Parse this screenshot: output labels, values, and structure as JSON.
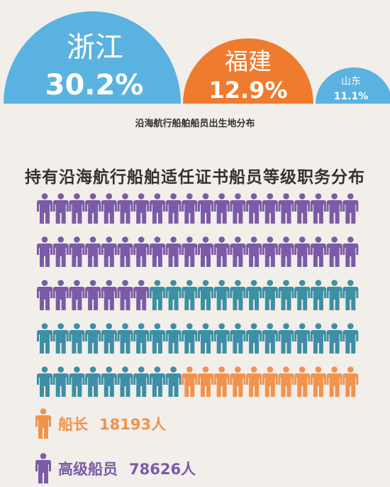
{
  "chart_data": [
    {
      "type": "bubble",
      "title": "沿海航行船舶船员出生地分布",
      "items": [
        {
          "name": "浙江",
          "value_label": "30.2%",
          "value": 30.2,
          "color": "#5ab2e0"
        },
        {
          "name": "福建",
          "value_label": "12.9%",
          "value": 12.9,
          "color": "#ef7b2e"
        },
        {
          "name": "山东",
          "value_label": "11.1%",
          "value": 11.1,
          "color": "#5ab2e0"
        }
      ]
    },
    {
      "type": "pictogram",
      "title": "持有沿海航行船舶适任证书船员等级职务分布",
      "rows": 5,
      "columns": 20,
      "sequence": [
        {
          "name": "row-purple",
          "count": 47,
          "color": "#7b5ba6"
        },
        {
          "name": "row-teal",
          "count": 42,
          "color": "#3d8fa3"
        },
        {
          "name": "row-orange",
          "count": 11,
          "color": "#f0934d"
        }
      ],
      "legend": [
        {
          "label": "船长",
          "count_label": "18193人",
          "value": 18193,
          "color": "#f0934d"
        },
        {
          "label": "高级船员",
          "count_label": "78626人",
          "value": 78626,
          "color": "#7b5ba6"
        }
      ]
    }
  ]
}
